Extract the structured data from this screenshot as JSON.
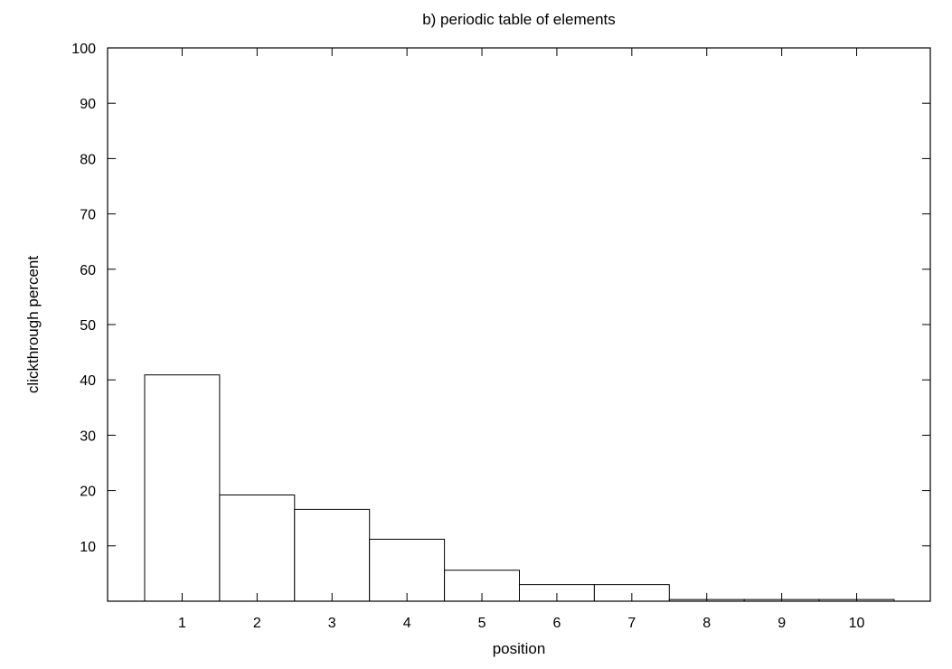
{
  "chart_data": {
    "type": "bar",
    "title": "b) periodic table of elements",
    "xlabel": "position",
    "ylabel": "clickthrough percent",
    "categories": [
      "1",
      "2",
      "3",
      "4",
      "5",
      "6",
      "7",
      "8",
      "9",
      "10"
    ],
    "values": [
      40.9,
      19.2,
      16.6,
      11.2,
      5.6,
      3.0,
      3.0,
      0.3,
      0.3,
      0.3
    ],
    "ylim": [
      0,
      100
    ],
    "yticks": [
      "10",
      "20",
      "30",
      "40",
      "50",
      "60",
      "70",
      "80",
      "90",
      "100"
    ],
    "grid": false,
    "colors": {
      "bar_fill": "#ffffff",
      "bar_stroke": "#000000",
      "axis": "#000000"
    }
  }
}
